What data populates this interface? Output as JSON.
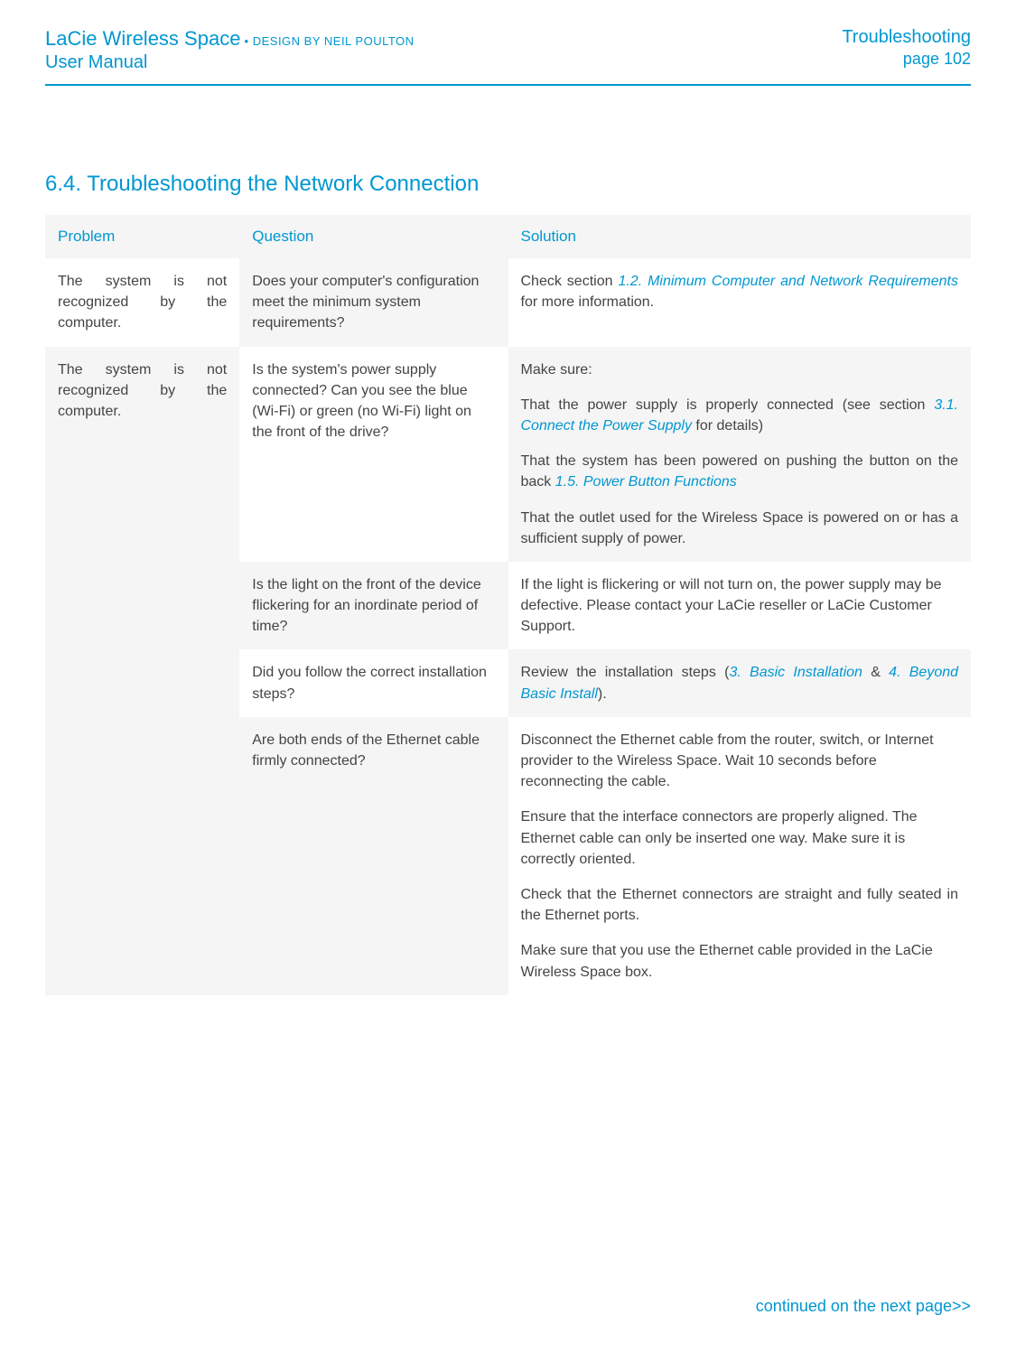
{
  "header": {
    "product_title": "LaCie Wireless Space",
    "design_by": " • DESIGN BY NEIL POULTON",
    "user_manual": "User Manual",
    "section_name": "Troubleshooting",
    "page_num": "page 102"
  },
  "section_heading": "6.4.  Troubleshooting the Network Connection",
  "table": {
    "headers": {
      "problem": "Problem",
      "question": "Question",
      "solution": "Solution"
    },
    "rows": {
      "r1": {
        "problem": "The system is not recognized by the computer.",
        "question": "Does your computer's configuration meet the minimum system requirements?",
        "solution_pre": "Check section ",
        "solution_link": "1.2. Minimum Computer and Network Requirements",
        "solution_post": " for more information."
      },
      "r2": {
        "problem": "The system is not recognized by the computer.",
        "question": "Is the system's power supply connected? Can you see the blue (Wi-Fi) or green (no Wi-Fi) light on the front of the drive?",
        "p1": "Make sure:",
        "p2_pre": "That the power supply is properly connected (see section ",
        "p2_link": "3.1. Connect the Power Supply",
        "p2_post": " for details)",
        "p3_pre": "That the system has been powered on pushing the button on the back ",
        "p3_link": "1.5. Power Button Functions",
        "p4": "That the outlet used for the Wireless Space is powered on or has a sufficient supply of power."
      },
      "r3": {
        "question": "Is the light on the front of the device flickering for an inordinate period of time?",
        "solution": "If the light is flickering or will not turn on, the power supply may be defective. Please contact your LaCie reseller or LaCie Customer Support."
      },
      "r4": {
        "question": "Did you follow the correct installation steps?",
        "pre": "Review the installation steps (",
        "link1": "3. Basic Installation",
        "mid": " & ",
        "link2": "4. Beyond Basic Install",
        "post": ")."
      },
      "r5": {
        "question": "Are both ends of the Ethernet cable firmly connected?",
        "p1": "Disconnect the Ethernet cable from the router, switch, or Internet provider to the Wireless Space. Wait 10 seconds before reconnecting the cable.",
        "p2": "Ensure that the interface connectors are properly aligned. The Ethernet cable can only be inserted one way. Make sure it is correctly oriented.",
        "p3": "Check that the Ethernet connectors are straight and fully seated in the Ethernet ports.",
        "p4": "Make sure that you use the Ethernet cable provided in the LaCie Wireless Space box."
      }
    }
  },
  "continued": "continued on the next page>>"
}
